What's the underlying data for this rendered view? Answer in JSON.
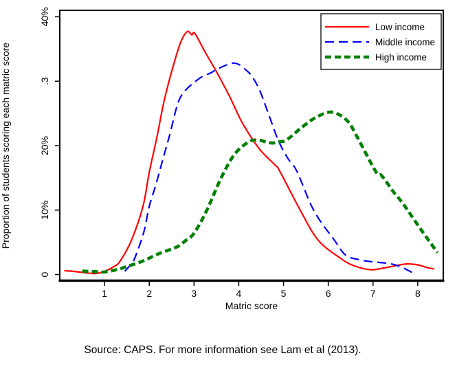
{
  "figure": {
    "source_note": "Source: CAPS. For more information see Lam et al (2013)."
  },
  "chart_data": {
    "type": "line",
    "title": "",
    "xlabel": "Matric score",
    "ylabel": "Proportion of students scoring each matric score",
    "xlim": [
      0,
      8.57
    ],
    "ylim": [
      -1,
      41
    ],
    "grid": false,
    "x_ticks": [
      1,
      2,
      3,
      4,
      5,
      6,
      7,
      8
    ],
    "y_ticks": [
      {
        "value": 0,
        "label": "0"
      },
      {
        "value": 10,
        "label": "10%"
      },
      {
        "value": 20,
        "label": "20%"
      },
      {
        "value": 30,
        "label": ".3"
      },
      {
        "value": 40,
        "label": "40%"
      }
    ],
    "legend": {
      "position": "top-right",
      "entries": [
        "Low income",
        "Middle income",
        "High income"
      ]
    },
    "series": [
      {
        "name": "Low income",
        "color": "#ff0000",
        "style": "solid",
        "width": 2.2,
        "points": [
          [
            0.1,
            0.6
          ],
          [
            0.3,
            0.5
          ],
          [
            0.55,
            0.3
          ],
          [
            0.8,
            0.15
          ],
          [
            1.0,
            0.5
          ],
          [
            1.2,
            1.2
          ],
          [
            1.35,
            2.1
          ],
          [
            1.6,
            5.3
          ],
          [
            1.86,
            10.6
          ],
          [
            2.0,
            15.9
          ],
          [
            2.17,
            21.3
          ],
          [
            2.32,
            26.6
          ],
          [
            2.5,
            31.5
          ],
          [
            2.7,
            36.0
          ],
          [
            2.85,
            37.7
          ],
          [
            2.95,
            37.2
          ],
          [
            3.02,
            37.4
          ],
          [
            3.25,
            34.5
          ],
          [
            3.5,
            31.5
          ],
          [
            3.79,
            27.7
          ],
          [
            4.09,
            23.4
          ],
          [
            4.46,
            19.5
          ],
          [
            4.81,
            17.0
          ],
          [
            4.92,
            16.0
          ],
          [
            5.38,
            9.9
          ],
          [
            5.78,
            5.3
          ],
          [
            6.3,
            2.4
          ],
          [
            6.6,
            1.3
          ],
          [
            6.96,
            0.75
          ],
          [
            7.3,
            1.1
          ],
          [
            7.6,
            1.5
          ],
          [
            7.77,
            1.65
          ],
          [
            8.0,
            1.5
          ],
          [
            8.2,
            1.1
          ],
          [
            8.37,
            0.85
          ]
        ]
      },
      {
        "name": "Middle income",
        "color": "#0000ff",
        "style": "dashed",
        "width": 2.2,
        "points": [
          [
            1.45,
            0.5
          ],
          [
            1.57,
            1.4
          ],
          [
            1.65,
            2.1
          ],
          [
            1.87,
            6.4
          ],
          [
            2.0,
            10.6
          ],
          [
            2.15,
            14.0
          ],
          [
            2.3,
            17.8
          ],
          [
            2.45,
            21.5
          ],
          [
            2.64,
            26.6
          ],
          [
            2.8,
            28.5
          ],
          [
            3.0,
            29.8
          ],
          [
            3.2,
            30.8
          ],
          [
            3.35,
            31.2
          ],
          [
            3.5,
            31.8
          ],
          [
            3.65,
            32.3
          ],
          [
            3.85,
            32.8
          ],
          [
            4.0,
            32.6
          ],
          [
            4.15,
            31.8
          ],
          [
            4.28,
            30.9
          ],
          [
            4.46,
            28.7
          ],
          [
            4.66,
            25.0
          ],
          [
            4.89,
            20.7
          ],
          [
            5.1,
            18.0
          ],
          [
            5.3,
            16.0
          ],
          [
            5.68,
            9.9
          ],
          [
            6.14,
            5.3
          ],
          [
            6.39,
            3.0
          ],
          [
            6.7,
            2.3
          ],
          [
            6.96,
            2.0
          ],
          [
            7.37,
            1.7
          ],
          [
            7.62,
            1.2
          ],
          [
            7.88,
            0.3
          ]
        ]
      },
      {
        "name": "High income",
        "color": "#008000",
        "style": "thick-dashed",
        "width": 4.6,
        "points": [
          [
            0.5,
            0.55
          ],
          [
            0.8,
            0.45
          ],
          [
            1.0,
            0.4
          ],
          [
            1.3,
            0.8
          ],
          [
            1.52,
            1.3
          ],
          [
            1.86,
            2.1
          ],
          [
            2.2,
            3.2
          ],
          [
            2.62,
            4.3
          ],
          [
            2.8,
            5.2
          ],
          [
            3.0,
            6.4
          ],
          [
            3.28,
            9.9
          ],
          [
            3.6,
            14.9
          ],
          [
            3.9,
            18.6
          ],
          [
            4.2,
            20.5
          ],
          [
            4.4,
            20.9
          ],
          [
            4.6,
            20.6
          ],
          [
            4.75,
            20.4
          ],
          [
            4.9,
            20.6
          ],
          [
            5.07,
            20.9
          ],
          [
            5.42,
            22.9
          ],
          [
            5.73,
            24.4
          ],
          [
            6.08,
            25.2
          ],
          [
            6.42,
            23.9
          ],
          [
            6.65,
            21.3
          ],
          [
            7.06,
            16.0
          ],
          [
            7.2,
            15.3
          ],
          [
            7.46,
            12.8
          ],
          [
            7.67,
            11.0
          ],
          [
            8.06,
            7.1
          ],
          [
            8.44,
            3.4
          ]
        ]
      }
    ]
  }
}
